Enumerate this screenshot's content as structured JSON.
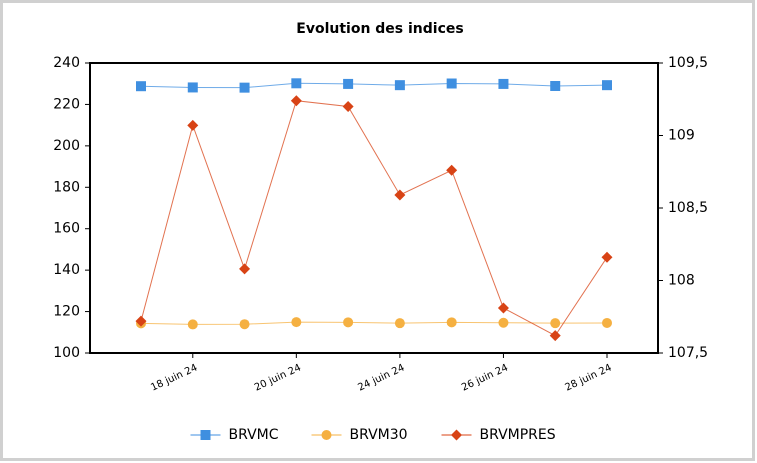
{
  "chart_data": {
    "type": "line",
    "title": "Evolution des indices",
    "categories": [
      null,
      "18 juin 24",
      null,
      "20 juin 24",
      null,
      "24 juin 24",
      null,
      "26 juin 24",
      null,
      "28 juin 24"
    ],
    "series": [
      {
        "name": "BRVMC",
        "color": "#3f8fe0",
        "marker": "square",
        "values": [
          228.8,
          228.2,
          228.1,
          230.2,
          229.9,
          229.3,
          230.1,
          229.9,
          228.9,
          229.3
        ]
      },
      {
        "name": "BRVM30",
        "color": "#f5b041",
        "marker": "circle",
        "values": [
          114.3,
          113.8,
          113.9,
          114.9,
          114.8,
          114.4,
          114.8,
          114.6,
          114.4,
          114.5
        ]
      },
      {
        "name": "BRVMPRES",
        "color": "#d84315",
        "marker": "diamond",
        "axis": "y2",
        "values": [
          107.72,
          109.07,
          108.08,
          109.24,
          109.2,
          108.59,
          108.76,
          107.81,
          107.62,
          108.16
        ]
      }
    ],
    "ylim": [
      100,
      240
    ],
    "yticks": [
      100,
      120,
      140,
      160,
      180,
      200,
      220,
      240
    ],
    "y2lim": [
      107.5,
      109.5
    ],
    "y2ticks": [
      {
        "value": 107.5,
        "label": "107,5"
      },
      108,
      {
        "value": 108.5,
        "label": "108,5"
      },
      109,
      {
        "value": 109.5,
        "label": "109,5"
      }
    ],
    "legend": "bottom"
  }
}
